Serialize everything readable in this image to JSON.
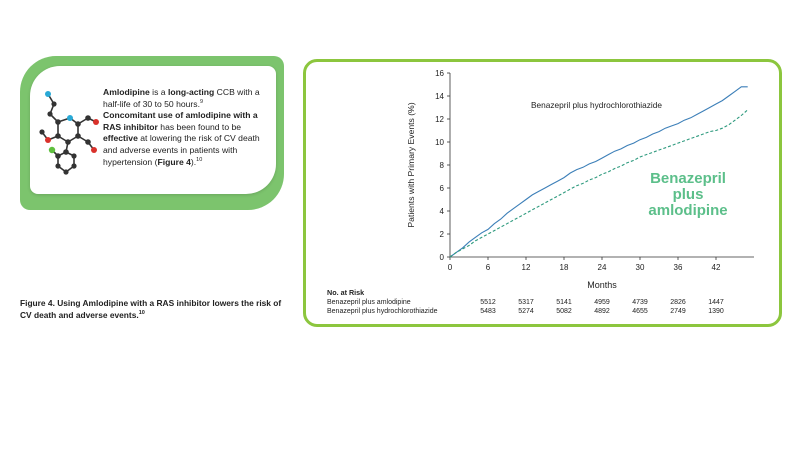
{
  "callout": {
    "t1": "Amlodipine",
    "t2": " is a ",
    "t3": "long-acting",
    "t4": " CCB with a half-life of 30 to 50 hours.",
    "ref1": "9",
    "t5": "Concomitant use of amlodipine with a RAS inhibitor",
    "t6": " has been found to be ",
    "t7": "effective",
    "t8": " at lowering the risk of CV death and adverse events in patients with hypertension (",
    "t9": "Figure 4",
    "t10": ").",
    "ref2": "10"
  },
  "caption": {
    "text": "Figure 4. Using Amlodipine with a RAS inhibitor lowers the risk of CV death and adverse events.",
    "ref": "10"
  },
  "colors": {
    "callout_green": "#7cc46d",
    "frame_green": "#8cc63e",
    "line_solid": "#3c7fb8",
    "line_dashed": "#2e9a7e",
    "label_green": "#5cbf8a"
  },
  "chart_data": {
    "type": "line",
    "xlabel": "Months",
    "ylabel": "Patients with Primary Events (%)",
    "xlim": [
      0,
      48
    ],
    "ylim": [
      0,
      16
    ],
    "xticks": [
      0,
      6,
      12,
      18,
      24,
      30,
      36,
      42
    ],
    "yticks": [
      0,
      2,
      4,
      6,
      8,
      10,
      12,
      14,
      16
    ],
    "series": [
      {
        "name": "Benazepril plus hydrochlorothiazide",
        "style": "solid",
        "color": "#3c7fb8",
        "x": [
          0,
          1,
          2,
          3,
          4,
          5,
          6,
          7,
          8,
          9,
          10,
          11,
          12,
          13,
          14,
          15,
          16,
          17,
          18,
          19,
          20,
          21,
          22,
          23,
          24,
          25,
          26,
          27,
          28,
          29,
          30,
          31,
          32,
          33,
          34,
          35,
          36,
          37,
          38,
          39,
          40,
          41,
          42,
          43,
          44,
          45,
          46,
          47
        ],
        "y": [
          0,
          0.4,
          0.8,
          1.3,
          1.7,
          2.1,
          2.4,
          2.9,
          3.3,
          3.8,
          4.2,
          4.6,
          5.0,
          5.4,
          5.7,
          6.0,
          6.3,
          6.6,
          6.9,
          7.3,
          7.6,
          7.8,
          8.1,
          8.3,
          8.6,
          8.9,
          9.2,
          9.4,
          9.7,
          9.9,
          10.2,
          10.4,
          10.7,
          10.9,
          11.2,
          11.4,
          11.6,
          11.9,
          12.1,
          12.4,
          12.7,
          13.0,
          13.3,
          13.6,
          14.0,
          14.4,
          14.8,
          14.8
        ]
      },
      {
        "name": "Benazepril plus amlodipine",
        "style": "dashed",
        "color": "#2e9a7e",
        "x": [
          0,
          1,
          2,
          3,
          4,
          5,
          6,
          7,
          8,
          9,
          10,
          11,
          12,
          13,
          14,
          15,
          16,
          17,
          18,
          19,
          20,
          21,
          22,
          23,
          24,
          25,
          26,
          27,
          28,
          29,
          30,
          31,
          32,
          33,
          34,
          35,
          36,
          37,
          38,
          39,
          40,
          41,
          42,
          43,
          44,
          45,
          46,
          47
        ],
        "y": [
          0,
          0.4,
          0.7,
          1.0,
          1.4,
          1.7,
          2.0,
          2.3,
          2.6,
          2.9,
          3.2,
          3.5,
          3.8,
          4.1,
          4.4,
          4.7,
          5.0,
          5.3,
          5.6,
          5.9,
          6.2,
          6.4,
          6.7,
          6.9,
          7.2,
          7.4,
          7.7,
          7.9,
          8.2,
          8.4,
          8.7,
          8.9,
          9.1,
          9.3,
          9.5,
          9.7,
          9.9,
          10.1,
          10.3,
          10.5,
          10.7,
          10.9,
          11.0,
          11.2,
          11.5,
          11.9,
          12.3,
          12.8
        ]
      }
    ],
    "annotations": {
      "solid_label": "Benazepril plus hydrochlorothiazide",
      "dashed_label_1": "Benazepril",
      "dashed_label_2": "plus",
      "dashed_label_3": "amlodipine"
    },
    "risk_table": {
      "title": "No. at Risk",
      "rows": [
        {
          "label": "Benazepril plus amlodipine",
          "values": [
            "5512",
            "5317",
            "5141",
            "4959",
            "4739",
            "2826",
            "1447"
          ]
        },
        {
          "label": "Benazepril plus hydrochlorothiazide",
          "values": [
            "5483",
            "5274",
            "5082",
            "4892",
            "4655",
            "2749",
            "1390"
          ]
        }
      ]
    }
  }
}
